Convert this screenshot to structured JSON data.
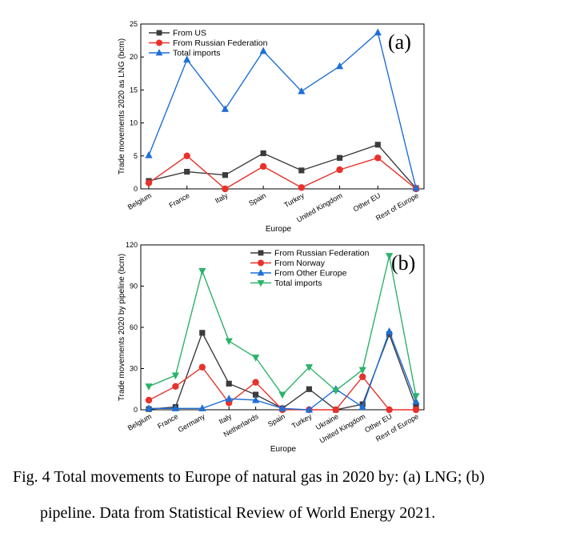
{
  "colors": {
    "black": "#3c3c3c",
    "red": "#e8322c",
    "blue": "#1f6fd6",
    "green": "#2db36a"
  },
  "chart_data": [
    {
      "type": "line",
      "panel_label": "(a)",
      "xlabel": "Europe",
      "ylabel": "Trade movements 2020 as LNG (bcm)",
      "categories": [
        "Belgium",
        "France",
        "Italy",
        "Spain",
        "Turkey",
        "United Kingdom",
        "Other EU",
        "Rest of Europe"
      ],
      "ylim": [
        0,
        25
      ],
      "yticks": [
        0,
        5,
        10,
        15,
        20,
        25
      ],
      "legend_position": "top-left",
      "series": [
        {
          "name": "From US",
          "marker": "square",
          "color": "#3c3c3c",
          "values": [
            1.2,
            2.6,
            2.1,
            5.4,
            2.8,
            4.7,
            6.7,
            0.1
          ]
        },
        {
          "name": "From Russian Federation",
          "marker": "circle",
          "color": "#e8322c",
          "values": [
            0.9,
            5.0,
            0.0,
            3.4,
            0.2,
            2.9,
            4.7,
            0.0
          ]
        },
        {
          "name": "Total imports",
          "marker": "triangle-up",
          "color": "#1f6fd6",
          "values": [
            5.1,
            19.6,
            12.1,
            20.9,
            14.8,
            18.6,
            23.7,
            0.1
          ]
        }
      ]
    },
    {
      "type": "line",
      "panel_label": "(b)",
      "xlabel": "Europe",
      "ylabel": "Trade movements 2020 by pipeline (bcm)",
      "categories": [
        "Belgium",
        "France",
        "Germany",
        "Italy",
        "Netherlands",
        "Spain",
        "Turkey",
        "Ukraine",
        "United Kingdom",
        "Other EU",
        "Rest of Europe"
      ],
      "ylim": [
        0,
        120
      ],
      "yticks": [
        0,
        30,
        60,
        90,
        120
      ],
      "legend_position": "top-center",
      "series": [
        {
          "name": "From Russian Federation",
          "marker": "square",
          "color": "#3c3c3c",
          "values": [
            0.5,
            2,
            56,
            19,
            11,
            1,
            15,
            0,
            4,
            55,
            2
          ]
        },
        {
          "name": "From Norway",
          "marker": "circle",
          "color": "#e8322c",
          "values": [
            7,
            17,
            31,
            5,
            20,
            0,
            0,
            0,
            24,
            0,
            0
          ]
        },
        {
          "name": "From Other Europe",
          "marker": "triangle-up",
          "color": "#1f6fd6",
          "values": [
            1,
            1,
            1,
            8,
            7,
            1,
            0,
            15,
            2,
            57,
            6
          ]
        },
        {
          "name": "Total imports",
          "marker": "triangle-down",
          "color": "#2db36a",
          "values": [
            17,
            25,
            101,
            50,
            38,
            11,
            31,
            14,
            29,
            112,
            10
          ]
        }
      ]
    }
  ],
  "caption": {
    "line1": "Fig. 4 Total movements to Europe of natural gas in 2020 by: (a) LNG; (b)",
    "line2": "pipeline. Data from Statistical Review of World Energy 2021."
  }
}
